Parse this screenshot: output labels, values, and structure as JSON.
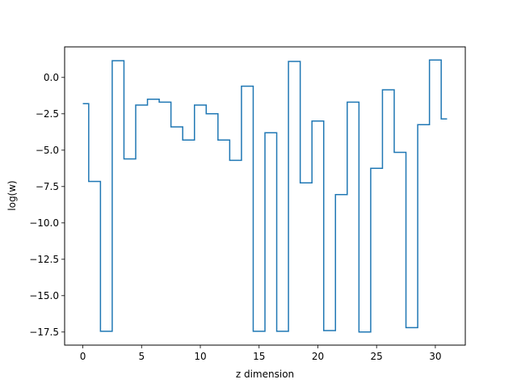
{
  "chart_data": {
    "type": "line",
    "drawstyle": "steps-mid",
    "title": "",
    "xlabel": "z dimension",
    "ylabel": "log(w)",
    "xlim": [
      -1.55,
      32.55
    ],
    "ylim": [
      -18.4,
      2.1
    ],
    "xticks": [
      0,
      5,
      10,
      15,
      20,
      25,
      30
    ],
    "xtick_labels": [
      "0",
      "5",
      "10",
      "15",
      "20",
      "25",
      "30"
    ],
    "yticks": [
      0.0,
      -2.5,
      -5.0,
      -7.5,
      -10.0,
      -12.5,
      -15.0,
      -17.5
    ],
    "ytick_labels": [
      "0.0",
      "−2.5",
      "−5.0",
      "−7.5",
      "−10.0",
      "−12.5",
      "−15.0",
      "−17.5"
    ],
    "grid": false,
    "legend": false,
    "series": [
      {
        "color": "#1f77b4",
        "x": [
          0,
          1,
          2,
          3,
          4,
          5,
          6,
          7,
          8,
          9,
          10,
          11,
          12,
          13,
          14,
          15,
          16,
          17,
          18,
          19,
          20,
          21,
          22,
          23,
          24,
          25,
          26,
          27,
          28,
          29,
          30,
          31
        ],
        "y": [
          -1.8,
          -7.15,
          -17.45,
          1.15,
          -5.6,
          -1.9,
          -1.5,
          -1.7,
          -3.4,
          -4.3,
          -1.9,
          -2.5,
          -4.3,
          -5.7,
          -0.6,
          -17.45,
          -3.8,
          -17.45,
          1.1,
          -7.25,
          -3.0,
          -17.4,
          -8.05,
          -1.7,
          -17.5,
          -6.25,
          -0.85,
          -5.15,
          -17.2,
          -3.25,
          1.2,
          -2.85
        ]
      }
    ]
  }
}
